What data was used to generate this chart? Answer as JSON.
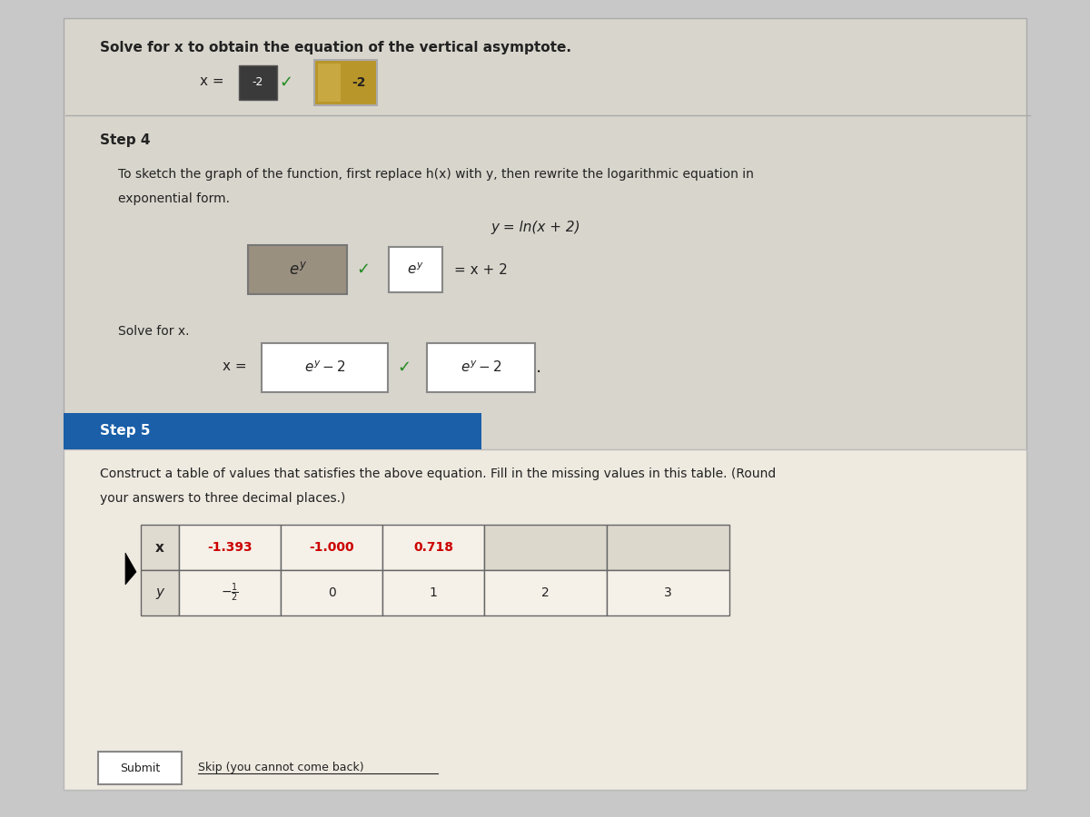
{
  "bg_color": "#c8c8c8",
  "panel_color": "#d8d5cc",
  "white_color": "#ffffff",
  "title_top": "Solve for x to obtain the equation of the vertical asymptote.",
  "step4_label": "Step 4",
  "step4_desc_line1": "To sketch the graph of the function, first replace h(x) with y, then rewrite the logarithmic equation in",
  "step4_desc_line2": "exponential form.",
  "eq_y_lnx2": "y = ln(x + 2)",
  "solve_for_x": "Solve for x.",
  "step5_label": "Step 5",
  "step5_desc_line1": "Construct a table of values that satisfies the above equation. Fill in the missing values in this table. (Round",
  "step5_desc_line2": "your answers to three decimal places.)",
  "table_x_vals": [
    "-1.393",
    "-1.000",
    "0.718",
    "",
    ""
  ],
  "table_y_vals": [
    "",
    "0",
    "1",
    "2",
    "3"
  ],
  "submit_text": "Submit",
  "skip_text": "Skip (you cannot come back)",
  "step5_header_color": "#1a5fa8",
  "step5_header_text_color": "#ffffff",
  "red_text_color": "#cc0000",
  "dark_text": "#222222",
  "input_box_color": "#9a9080",
  "answer_box_border": "#888888",
  "table_filled_color": "#f5f0e8",
  "table_empty_color": "#ddd8cc",
  "check_color": "#228B22"
}
